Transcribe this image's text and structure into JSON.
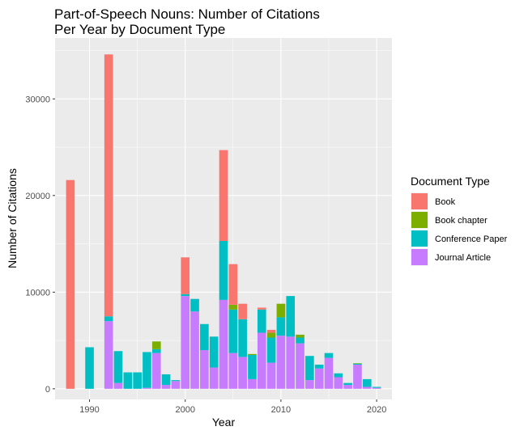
{
  "chart_data": {
    "type": "bar",
    "stacked": true,
    "title_lines": [
      "Part-of-Speech Nouns: Number of Citations",
      "Per Year by Document Type"
    ],
    "xlabel": "Year",
    "ylabel": "Number of Citations",
    "xlim": [
      1986.4,
      2021.6
    ],
    "ylim": [
      -1100,
      36300
    ],
    "x_ticks": [
      1990,
      2000,
      2010,
      2020
    ],
    "x_minor_ticks": [
      1985,
      1995,
      2005,
      2015,
      2025
    ],
    "y_ticks": [
      0,
      10000,
      20000,
      30000
    ],
    "y_minor_ticks": [
      5000,
      15000,
      25000,
      35000
    ],
    "grid": true,
    "legend": {
      "title": "Document Type",
      "position": "right"
    },
    "stack_order": [
      "Journal Article",
      "Conference Paper",
      "Book chapter",
      "Book"
    ],
    "colors": {
      "Book": "#F8766D",
      "Book chapter": "#7CAE00",
      "Conference Paper": "#00BFC4",
      "Journal Article": "#C77CFF"
    },
    "series": [
      {
        "name": "Book",
        "points": [
          [
            1988,
            21600
          ],
          [
            1992,
            27100
          ],
          [
            2000,
            3800
          ],
          [
            2004,
            9400
          ],
          [
            2005,
            4200
          ],
          [
            2006,
            1600
          ],
          [
            2008,
            200
          ],
          [
            2009,
            300
          ]
        ]
      },
      {
        "name": "Book chapter",
        "points": [
          [
            1997,
            800
          ],
          [
            2005,
            500
          ],
          [
            2007,
            100
          ],
          [
            2009,
            500
          ],
          [
            2010,
            1400
          ],
          [
            2012,
            300
          ],
          [
            2018,
            50
          ]
        ]
      },
      {
        "name": "Conference Paper",
        "points": [
          [
            1990,
            4300
          ],
          [
            1992,
            500
          ],
          [
            1993,
            3300
          ],
          [
            1994,
            1700
          ],
          [
            1995,
            1700
          ],
          [
            1996,
            3700
          ],
          [
            1997,
            400
          ],
          [
            1998,
            1100
          ],
          [
            1999,
            100
          ],
          [
            2000,
            200
          ],
          [
            2001,
            1300
          ],
          [
            2002,
            2700
          ],
          [
            2003,
            3200
          ],
          [
            2004,
            6100
          ],
          [
            2005,
            4500
          ],
          [
            2006,
            3900
          ],
          [
            2007,
            2500
          ],
          [
            2008,
            2400
          ],
          [
            2009,
            2600
          ],
          [
            2010,
            1900
          ],
          [
            2011,
            4200
          ],
          [
            2012,
            600
          ],
          [
            2013,
            2500
          ],
          [
            2014,
            400
          ],
          [
            2015,
            500
          ],
          [
            2016,
            400
          ],
          [
            2017,
            200
          ],
          [
            2018,
            100
          ],
          [
            2019,
            800
          ],
          [
            2020,
            100
          ]
        ]
      },
      {
        "name": "Journal Article",
        "points": [
          [
            1992,
            7000
          ],
          [
            1993,
            600
          ],
          [
            1996,
            100
          ],
          [
            1997,
            3700
          ],
          [
            1998,
            400
          ],
          [
            1999,
            800
          ],
          [
            2000,
            9600
          ],
          [
            2001,
            8000
          ],
          [
            2002,
            4000
          ],
          [
            2003,
            2200
          ],
          [
            2004,
            9200
          ],
          [
            2005,
            3700
          ],
          [
            2006,
            3300
          ],
          [
            2007,
            1000
          ],
          [
            2008,
            5800
          ],
          [
            2009,
            2700
          ],
          [
            2010,
            5500
          ],
          [
            2011,
            5400
          ],
          [
            2012,
            4700
          ],
          [
            2013,
            900
          ],
          [
            2014,
            2100
          ],
          [
            2015,
            3200
          ],
          [
            2016,
            1200
          ],
          [
            2017,
            400
          ],
          [
            2018,
            2500
          ],
          [
            2019,
            200
          ],
          [
            2020,
            100
          ]
        ]
      }
    ]
  }
}
